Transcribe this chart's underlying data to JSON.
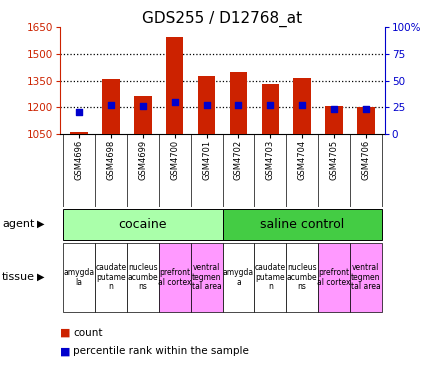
{
  "title": "GDS255 / D12768_at",
  "samples": [
    "GSM4696",
    "GSM4698",
    "GSM4699",
    "GSM4700",
    "GSM4701",
    "GSM4702",
    "GSM4703",
    "GSM4704",
    "GSM4705",
    "GSM4706"
  ],
  "count_base": 1050,
  "count_top": [
    1057,
    1360,
    1265,
    1595,
    1375,
    1400,
    1330,
    1365,
    1207,
    1200
  ],
  "percentile_values": [
    20,
    27,
    26,
    30,
    27,
    27,
    27,
    27,
    23,
    23
  ],
  "ylim_left": [
    1050,
    1650
  ],
  "ylim_right": [
    0,
    100
  ],
  "yticks_left": [
    1050,
    1200,
    1350,
    1500,
    1650
  ],
  "yticks_right": [
    0,
    25,
    50,
    75,
    100
  ],
  "ytick_right_labels": [
    "0",
    "25",
    "50",
    "75",
    "100%"
  ],
  "bar_color": "#cc2200",
  "percentile_color": "#0000cc",
  "agent_groups": [
    {
      "label": "cocaine",
      "start": 0,
      "end": 5,
      "color": "#aaffaa"
    },
    {
      "label": "saline control",
      "start": 5,
      "end": 10,
      "color": "#44cc44"
    }
  ],
  "tissues": [
    {
      "label": "amygda\nla",
      "color": "#ffffff"
    },
    {
      "label": "caudate\nputame\nn",
      "color": "#ffffff"
    },
    {
      "label": "nucleus\nacumbe\nns",
      "color": "#ffffff"
    },
    {
      "label": "prefront\nal cortex",
      "color": "#ff99ff"
    },
    {
      "label": "ventral\ntegmen\ntal area",
      "color": "#ff99ff"
    },
    {
      "label": "amygda\na",
      "color": "#ffffff"
    },
    {
      "label": "caudate\nputame\nn",
      "color": "#ffffff"
    },
    {
      "label": "nucleus\nacumbe\nns",
      "color": "#ffffff"
    },
    {
      "label": "prefront\nal cortex",
      "color": "#ff99ff"
    },
    {
      "label": "ventral\ntegmen\ntal area",
      "color": "#ff99ff"
    }
  ],
  "legend_count_label": "count",
  "legend_pct_label": "percentile rank within the sample",
  "agent_label": "agent",
  "tissue_label": "tissue",
  "left_axis_color": "#cc2200",
  "right_axis_color": "#0000cc",
  "title_fontsize": 11,
  "tick_fontsize": 7.5,
  "sample_fontsize": 6,
  "tissue_fontsize": 5.5,
  "legend_fontsize": 7.5,
  "label_fontsize": 8,
  "agent_fontsize": 9
}
